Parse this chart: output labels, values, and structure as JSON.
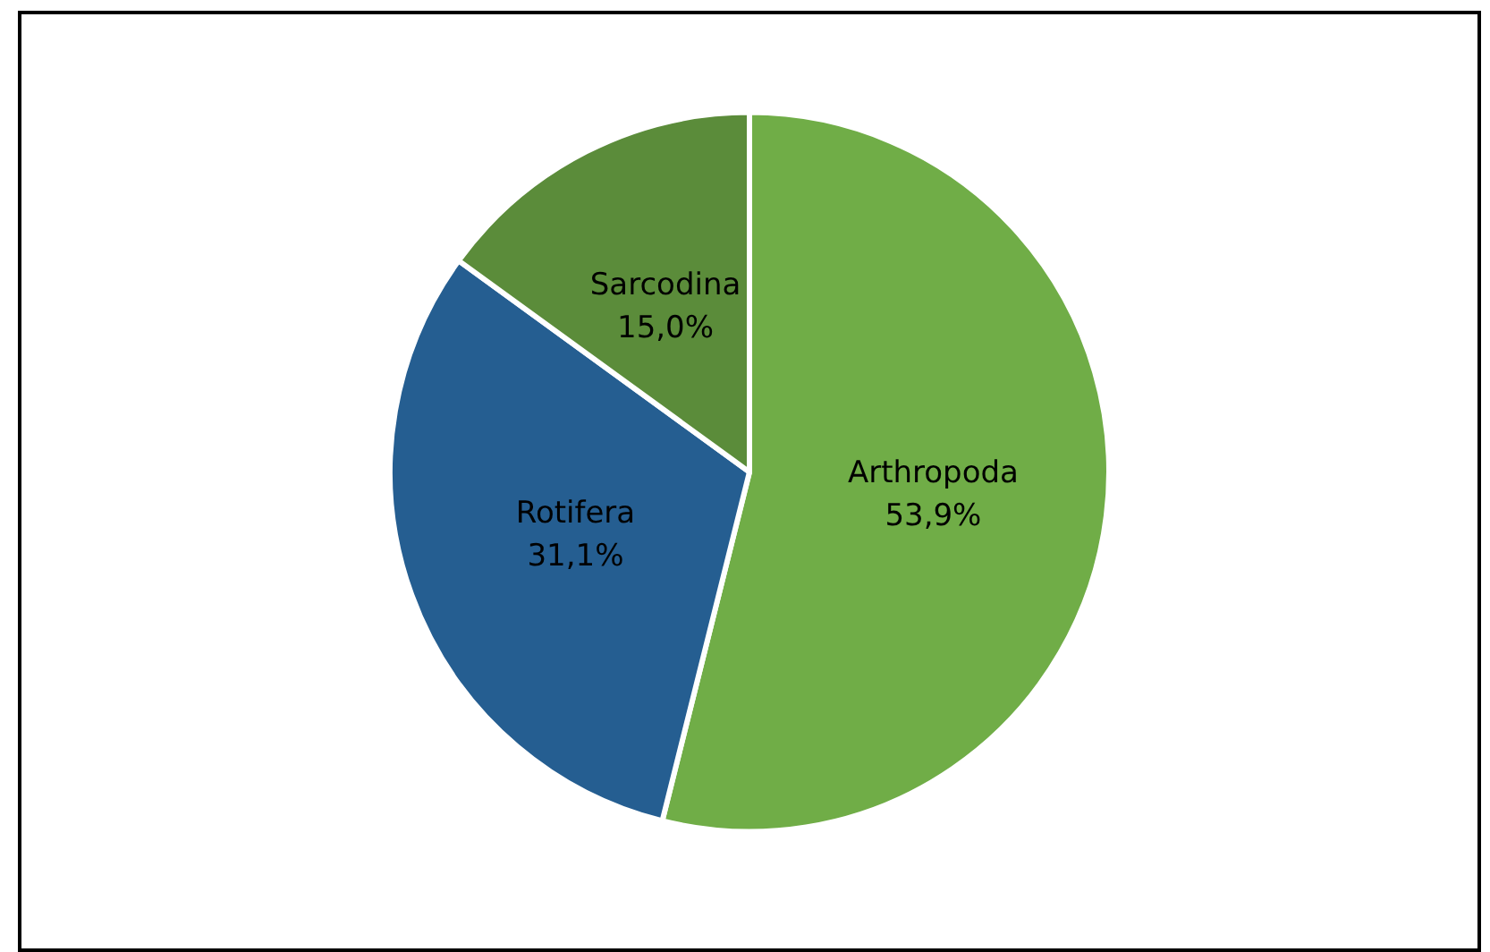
{
  "chart_data": {
    "type": "pie",
    "categories": [
      "Arthropoda",
      "Rotifera",
      "Sarcodina"
    ],
    "values": [
      53.9,
      31.1,
      15.0
    ],
    "colors": [
      "#70ad47",
      "#255e91",
      "#5b8c3a"
    ],
    "value_labels": [
      "53,9%",
      "31,1%",
      "15,0%"
    ],
    "legend": false
  }
}
